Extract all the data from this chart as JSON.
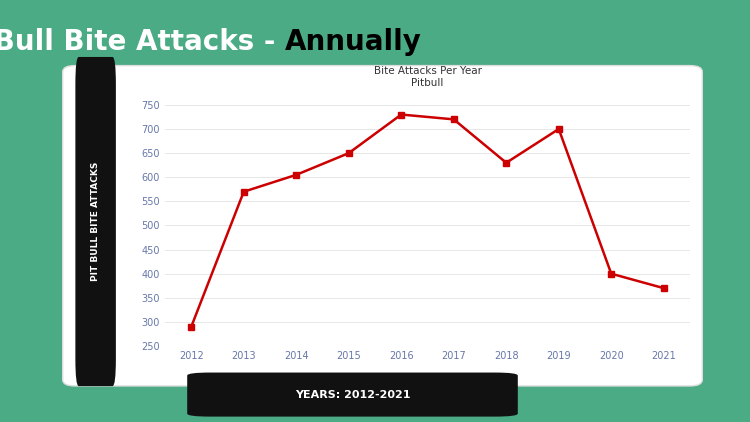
{
  "title_main": "Pit Bull Bite Attacks - ",
  "title_bold": "Annually",
  "chart_title": "Bite Attacks Per Year",
  "chart_subtitle": "Pitbull",
  "ylabel": "PIT BULL BITE ATTACKS",
  "xlabel_label": "YEARS: 2012-2021",
  "years": [
    2012,
    2013,
    2014,
    2015,
    2016,
    2017,
    2018,
    2019,
    2020,
    2021
  ],
  "values": [
    290,
    570,
    605,
    650,
    730,
    720,
    630,
    700,
    400,
    370
  ],
  "line_color": "#cc0000",
  "marker": "s",
  "marker_size": 4,
  "bg_color": "#4aab85",
  "card_bg": "#ffffff",
  "ylim": [
    250,
    775
  ],
  "yticks": [
    250,
    300,
    350,
    400,
    450,
    500,
    550,
    600,
    650,
    700,
    750
  ],
  "title_color_white": "#ffffff",
  "title_color_black": "#000000",
  "ylabel_bg": "#111111",
  "ylabel_text_color": "#ffffff",
  "xlabel_pill_bg": "#111111",
  "xlabel_pill_text": "#ffffff",
  "grid_color": "#dddddd",
  "tick_color": "#6677aa"
}
